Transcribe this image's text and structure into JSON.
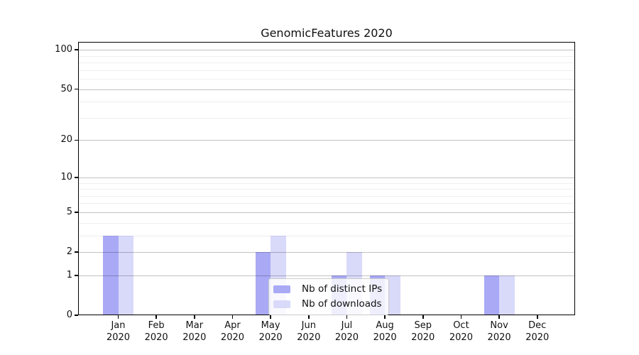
{
  "title": "GenomicFeatures 2020",
  "chart_data": {
    "type": "bar",
    "title": "GenomicFeatures 2020",
    "categories": [
      "Jan 2020",
      "Feb 2020",
      "Mar 2020",
      "Apr 2020",
      "May 2020",
      "Jun 2020",
      "Jul 2020",
      "Aug 2020",
      "Sep 2020",
      "Oct 2020",
      "Nov 2020",
      "Dec 2020"
    ],
    "series": [
      {
        "name": "Nb of distinct IPs",
        "color": "#a9a9f6",
        "values": [
          3,
          0,
          0,
          0,
          2,
          0,
          1,
          1,
          0,
          0,
          1,
          0
        ]
      },
      {
        "name": "Nb of downloads",
        "color": "#d9d9fa",
        "values": [
          3,
          0,
          0,
          0,
          3,
          0,
          2,
          1,
          0,
          0,
          1,
          0
        ]
      }
    ],
    "xlabel": "",
    "ylabel": "",
    "yscale": "log1p",
    "ylim": [
      0,
      115
    ],
    "yticks": [
      0,
      1,
      2,
      5,
      10,
      20,
      50,
      100
    ],
    "minor_gridlines": [
      3,
      4,
      6,
      7,
      8,
      9,
      30,
      40,
      60,
      70,
      80,
      90
    ],
    "grid": true,
    "legend_position": "inside-bottom-center"
  }
}
